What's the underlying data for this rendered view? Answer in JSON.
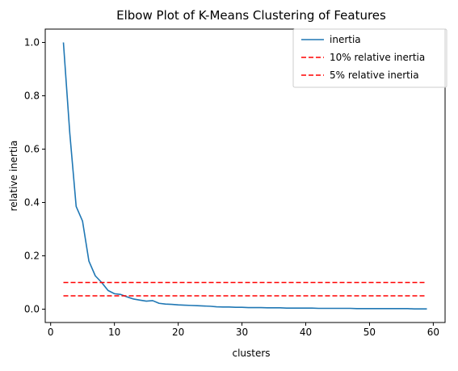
{
  "chart_data": {
    "type": "line",
    "title": "Elbow Plot of K-Means Clustering of Features",
    "xlabel": "clusters",
    "ylabel": "relative inertia",
    "xlim": [
      -0.85,
      61.85
    ],
    "ylim": [
      -0.05,
      1.05
    ],
    "xticks": [
      0,
      10,
      20,
      30,
      40,
      50,
      60
    ],
    "xtick_labels": [
      "0",
      "10",
      "20",
      "30",
      "40",
      "50",
      "60"
    ],
    "yticks": [
      0.0,
      0.2,
      0.4,
      0.6,
      0.8,
      1.0
    ],
    "ytick_labels": [
      "0.0",
      "0.2",
      "0.4",
      "0.6",
      "0.8",
      "1.0"
    ],
    "grid": false,
    "legend_position": "top-right",
    "series": [
      {
        "name": "inertia",
        "style": "solid",
        "color": "#1f77b4",
        "x": [
          2,
          3,
          4,
          5,
          6,
          7,
          8,
          9,
          10,
          11,
          12,
          13,
          14,
          15,
          16,
          17,
          18,
          19,
          20,
          21,
          22,
          23,
          24,
          25,
          26,
          27,
          28,
          29,
          30,
          31,
          32,
          33,
          34,
          35,
          36,
          37,
          38,
          39,
          40,
          41,
          42,
          43,
          44,
          45,
          46,
          47,
          48,
          49,
          50,
          51,
          52,
          53,
          54,
          55,
          56,
          57,
          58,
          59
        ],
        "y": [
          1.0,
          0.66,
          0.385,
          0.33,
          0.18,
          0.125,
          0.1,
          0.07,
          0.058,
          0.055,
          0.046,
          0.038,
          0.034,
          0.03,
          0.032,
          0.022,
          0.019,
          0.018,
          0.016,
          0.015,
          0.014,
          0.013,
          0.012,
          0.011,
          0.009,
          0.008,
          0.008,
          0.007,
          0.007,
          0.006,
          0.006,
          0.006,
          0.005,
          0.005,
          0.005,
          0.004,
          0.004,
          0.004,
          0.004,
          0.004,
          0.003,
          0.003,
          0.003,
          0.003,
          0.003,
          0.003,
          0.002,
          0.002,
          0.002,
          0.002,
          0.002,
          0.002,
          0.002,
          0.002,
          0.002,
          0.001,
          0.001,
          0.001
        ]
      },
      {
        "name": "10% relative inertia",
        "style": "dashed",
        "color": "#ff0000",
        "x": [
          2,
          59
        ],
        "y": [
          0.1,
          0.1
        ]
      },
      {
        "name": "5% relative inertia",
        "style": "dashed",
        "color": "#ff0000",
        "x": [
          2,
          59
        ],
        "y": [
          0.05,
          0.05
        ]
      }
    ]
  }
}
